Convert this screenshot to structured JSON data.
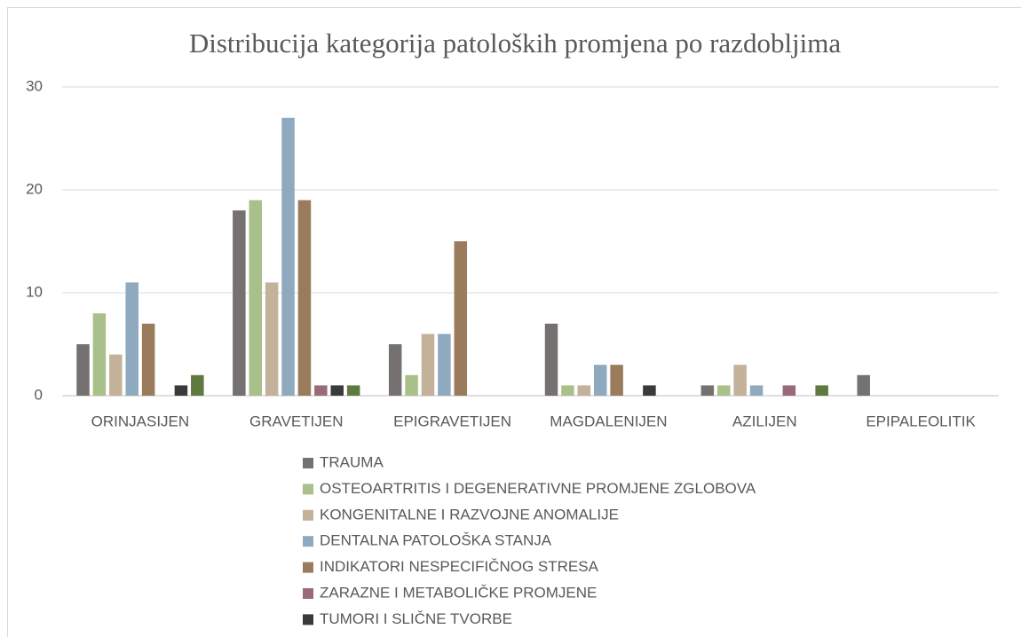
{
  "chart_data": {
    "type": "bar",
    "title": "Distribucija kategorija patoloških promjena po razdobljima",
    "categories": [
      "ORINJASIJEN",
      "GRAVETIJEN",
      "EPIGRAVETIJEN",
      "MAGDALENIJEN",
      "AZILIJEN",
      "EPIPALEOLITIK"
    ],
    "series": [
      {
        "name": "TRAUMA",
        "color": "#767171",
        "values": [
          5,
          18,
          5,
          7,
          1,
          2
        ]
      },
      {
        "name": "OSTEOARTRITIS I DEGENERATIVNE PROMJENE ZGLOBOVA",
        "color": "#a9c08a",
        "values": [
          8,
          19,
          2,
          1,
          1,
          0
        ]
      },
      {
        "name": "KONGENITALNE I RAZVOJNE ANOMALIJE",
        "color": "#c4b199",
        "values": [
          4,
          11,
          6,
          1,
          3,
          0
        ]
      },
      {
        "name": "DENTALNA PATOLOŠKA STANJA",
        "color": "#8fa9bf",
        "values": [
          11,
          27,
          6,
          3,
          1,
          0
        ]
      },
      {
        "name": "INDIKATORI NESPECIFIČNOG STRESA",
        "color": "#9a7b5c",
        "values": [
          7,
          19,
          15,
          3,
          0,
          0
        ]
      },
      {
        "name": "ZARAZNE I METABOLIČKE PROMJENE",
        "color": "#9a6a79",
        "values": [
          0,
          1,
          0,
          0,
          1,
          0
        ]
      },
      {
        "name": "TUMORI I SLIČNE TVORBE",
        "color": "#3a3a3a",
        "values": [
          1,
          1,
          0,
          1,
          0,
          0
        ]
      },
      {
        "color": "#5e7a41",
        "values": [
          2,
          1,
          0,
          0,
          1,
          0
        ]
      }
    ],
    "ylim": [
      0,
      30
    ],
    "yticks": [
      0,
      10,
      20,
      30
    ],
    "grid": true,
    "legend": "bottom"
  }
}
